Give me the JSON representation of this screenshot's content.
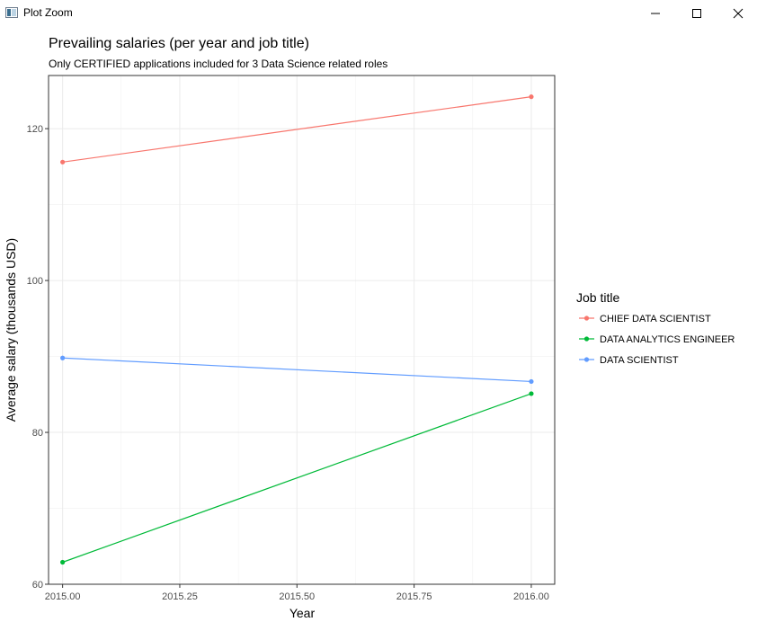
{
  "window": {
    "title": "Plot Zoom",
    "icons": {
      "app": "r-plot-icon",
      "minimize": "minimize-icon",
      "maximize": "maximize-icon",
      "close": "close-icon"
    }
  },
  "chart_data": {
    "type": "line",
    "title": "Prevailing salaries (per year and job title)",
    "subtitle": "Only CERTIFIED applications included for 3 Data Science related roles",
    "xlabel": "Year",
    "ylabel": "Average salary (thousands USD)",
    "xlim": [
      2014.97,
      2016.05
    ],
    "ylim": [
      60,
      127
    ],
    "x_ticks": [
      2015.0,
      2015.25,
      2015.5,
      2015.75,
      2016.0
    ],
    "x_tick_labels": [
      "2015.00",
      "2015.25",
      "2015.50",
      "2015.75",
      "2016.00"
    ],
    "y_ticks": [
      60,
      80,
      100,
      120
    ],
    "y_tick_labels": [
      "60",
      "80",
      "100",
      "120"
    ],
    "grid": true,
    "legend": {
      "title": "Job title",
      "position": "right"
    },
    "x": [
      2015,
      2016
    ],
    "series": [
      {
        "name": "CHIEF DATA SCIENTIST",
        "color": "#F8766D",
        "values": [
          115.6,
          124.2
        ]
      },
      {
        "name": "DATA ANALYTICS ENGINEER",
        "color": "#00BA38",
        "values": [
          62.9,
          85.1
        ]
      },
      {
        "name": "DATA SCIENTIST",
        "color": "#619CFF",
        "values": [
          89.8,
          86.7
        ]
      }
    ]
  }
}
